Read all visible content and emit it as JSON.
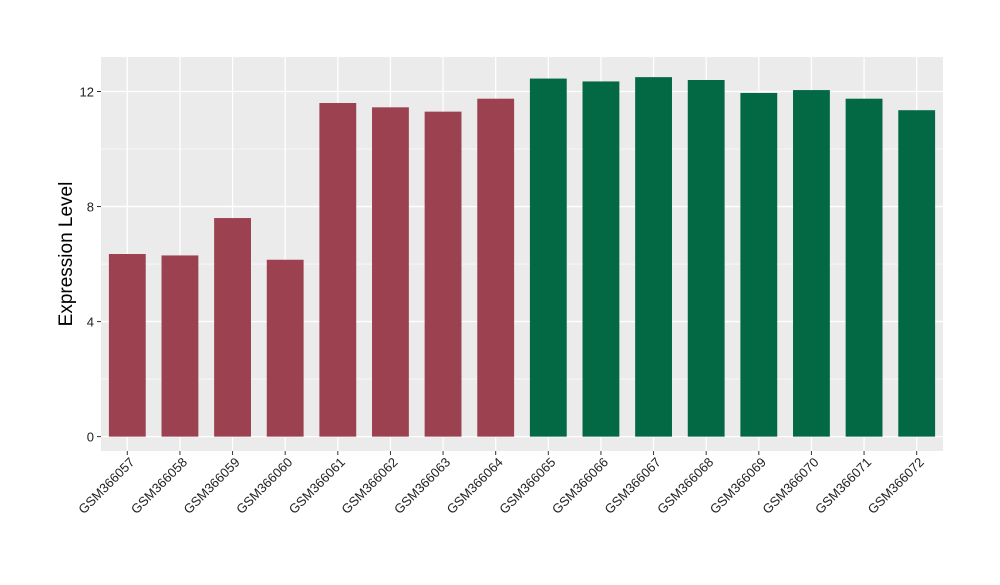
{
  "chart_data": {
    "type": "bar",
    "title": "",
    "xlabel": "",
    "ylabel": "Expression Level",
    "ylim": [
      -0.5,
      13.2
    ],
    "yticks": [
      0,
      4,
      8,
      12
    ],
    "grid": true,
    "legend": "none",
    "categories": [
      "GSM366057",
      "GSM366058",
      "GSM366059",
      "GSM366060",
      "GSM366061",
      "GSM366062",
      "GSM366063",
      "GSM366064",
      "GSM366065",
      "GSM366066",
      "GSM366067",
      "GSM366068",
      "GSM366069",
      "GSM366070",
      "GSM366071",
      "GSM366072"
    ],
    "values": [
      6.35,
      6.3,
      7.6,
      6.15,
      11.6,
      11.45,
      11.3,
      11.75,
      12.45,
      12.35,
      12.5,
      12.4,
      11.95,
      12.05,
      11.75,
      11.35
    ],
    "bar_colors": [
      "#9b414f",
      "#9b414f",
      "#9b414f",
      "#9b414f",
      "#9b414f",
      "#9b414f",
      "#9b414f",
      "#9b414f",
      "#036945",
      "#036945",
      "#036945",
      "#036945",
      "#036945",
      "#036945",
      "#036945",
      "#036945"
    ],
    "colors": {
      "panel_background": "#ebebeb",
      "grid": "#ffffff",
      "group_1": "#9b414f",
      "group_2": "#036945"
    }
  }
}
